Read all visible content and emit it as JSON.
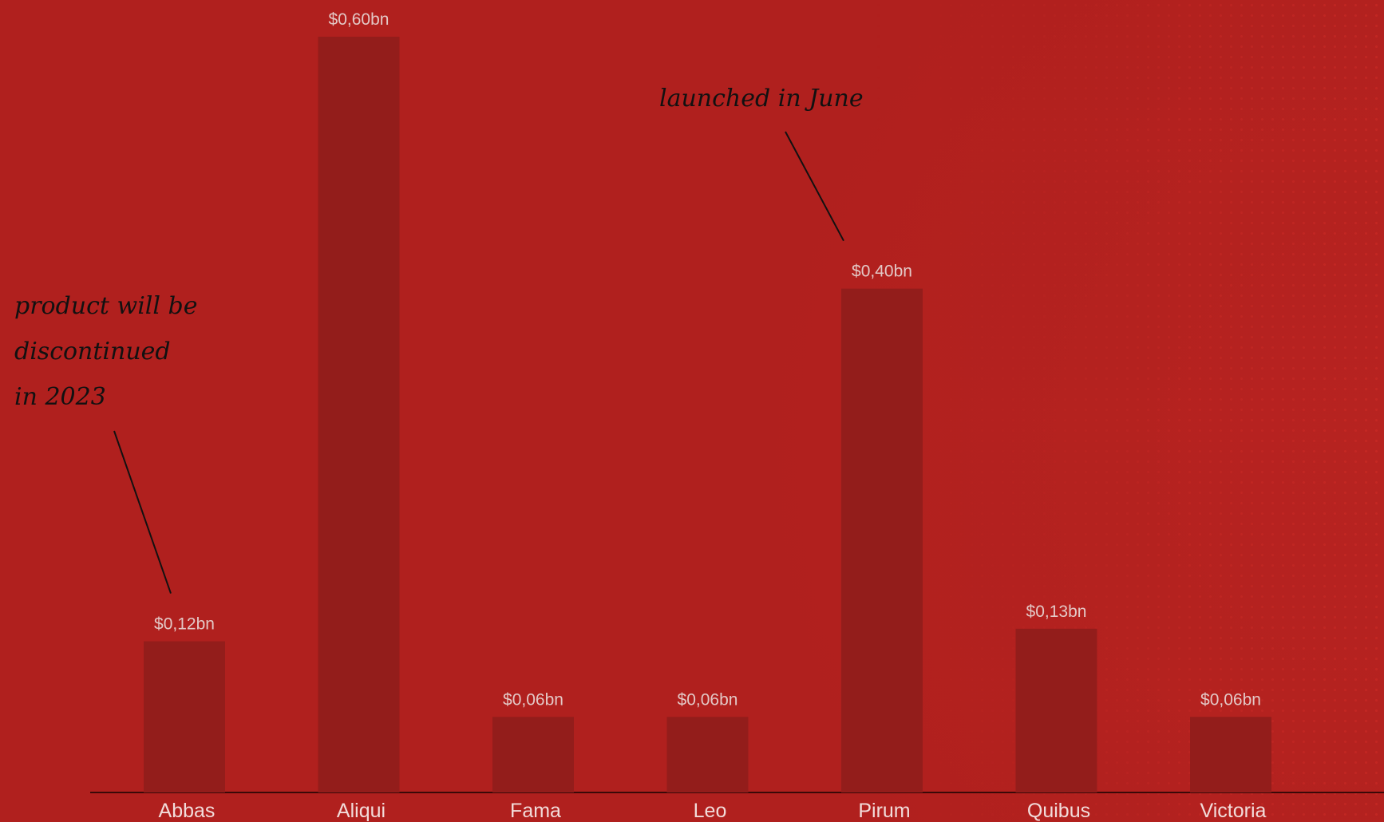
{
  "chart_data": {
    "type": "bar",
    "categories": [
      "Abbas",
      "Aliqui",
      "Fama",
      "Leo",
      "Pirum",
      "Quibus",
      "Victoria"
    ],
    "values": [
      0.12,
      0.6,
      0.06,
      0.06,
      0.4,
      0.13,
      0.06
    ],
    "value_labels": [
      "$0,12bn",
      "$0,60bn",
      "$0,06bn",
      "$0,06bn",
      "$0,40bn",
      "$0,13bn",
      "$0,06bn"
    ],
    "ylim": [
      0,
      0.6
    ],
    "title": "",
    "xlabel": "",
    "ylabel": "",
    "grid": false,
    "annotations": [
      {
        "category": "Abbas",
        "lines": [
          "product will be",
          "discontinued",
          "in 2023"
        ]
      },
      {
        "category": "Pirum",
        "lines": [
          "launched in June"
        ]
      }
    ]
  },
  "colors": {
    "background": "#b0201e",
    "bar": "#931d1b",
    "value_label": "#e3c8c6",
    "category_label": "#f2dcda",
    "annotation": "#111111"
  }
}
